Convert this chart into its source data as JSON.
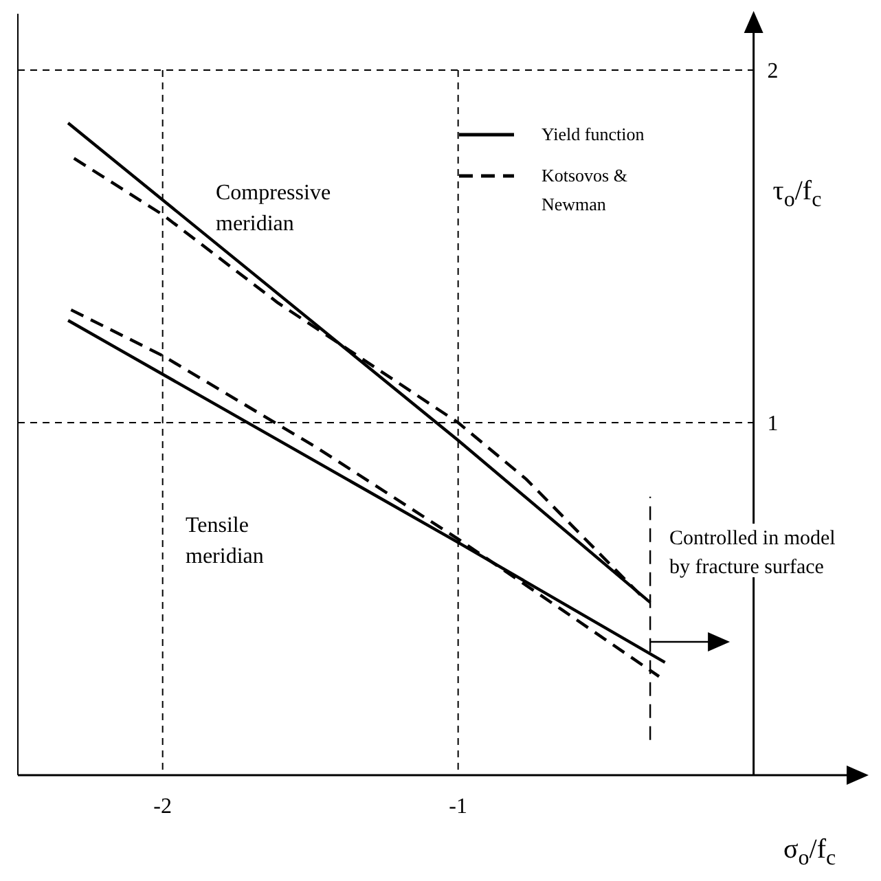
{
  "chart_data": {
    "type": "line",
    "xlabel": "σ$_{o}$/f$_{c}$",
    "ylabel": "τ$_{o}$/f$_{c}$",
    "xlim": [
      -2.49,
      0.38
    ],
    "ylim": [
      0,
      2.16
    ],
    "xticks": [
      -2,
      -1
    ],
    "yticks": [
      1,
      2
    ],
    "grid": true,
    "legend": "top right",
    "marker": "none",
    "series": [
      {
        "name": "Yield function",
        "color": "#000000",
        "line_style": "solid",
        "x": [
          -2.32,
          -1,
          -0.35
        ],
        "values": [
          1.85,
          0.95,
          0.49
        ]
      },
      {
        "name": "Kotsovos & Newman",
        "color": "#000000",
        "line_style": "dashed",
        "x": [
          -2.3,
          -2,
          -1.61,
          -1,
          -0.77,
          -0.37
        ],
        "values": [
          1.75,
          1.59,
          1.34,
          1.0,
          0.84,
          0.5
        ]
      },
      {
        "color": "#000000",
        "line_style": "solid",
        "x": [
          -2.32,
          -1,
          -0.3
        ],
        "values": [
          1.29,
          0.66,
          0.32
        ]
      },
      {
        "color": "#000000",
        "line_style": "dashed",
        "x": [
          -2.31,
          -2,
          -1.48,
          -1,
          -0.65,
          -0.32
        ],
        "values": [
          1.32,
          1.19,
          0.93,
          0.67,
          0.47,
          0.28
        ]
      },
      {
        "color": "#000000",
        "line_style": "dashed",
        "x": [
          -0.35,
          -0.35
        ],
        "values": [
          0.1,
          0.79
        ]
      }
    ],
    "annotations": [
      "Compressive meridian",
      "Tensile meridian",
      "Controlled in model by fracture surface"
    ]
  }
}
